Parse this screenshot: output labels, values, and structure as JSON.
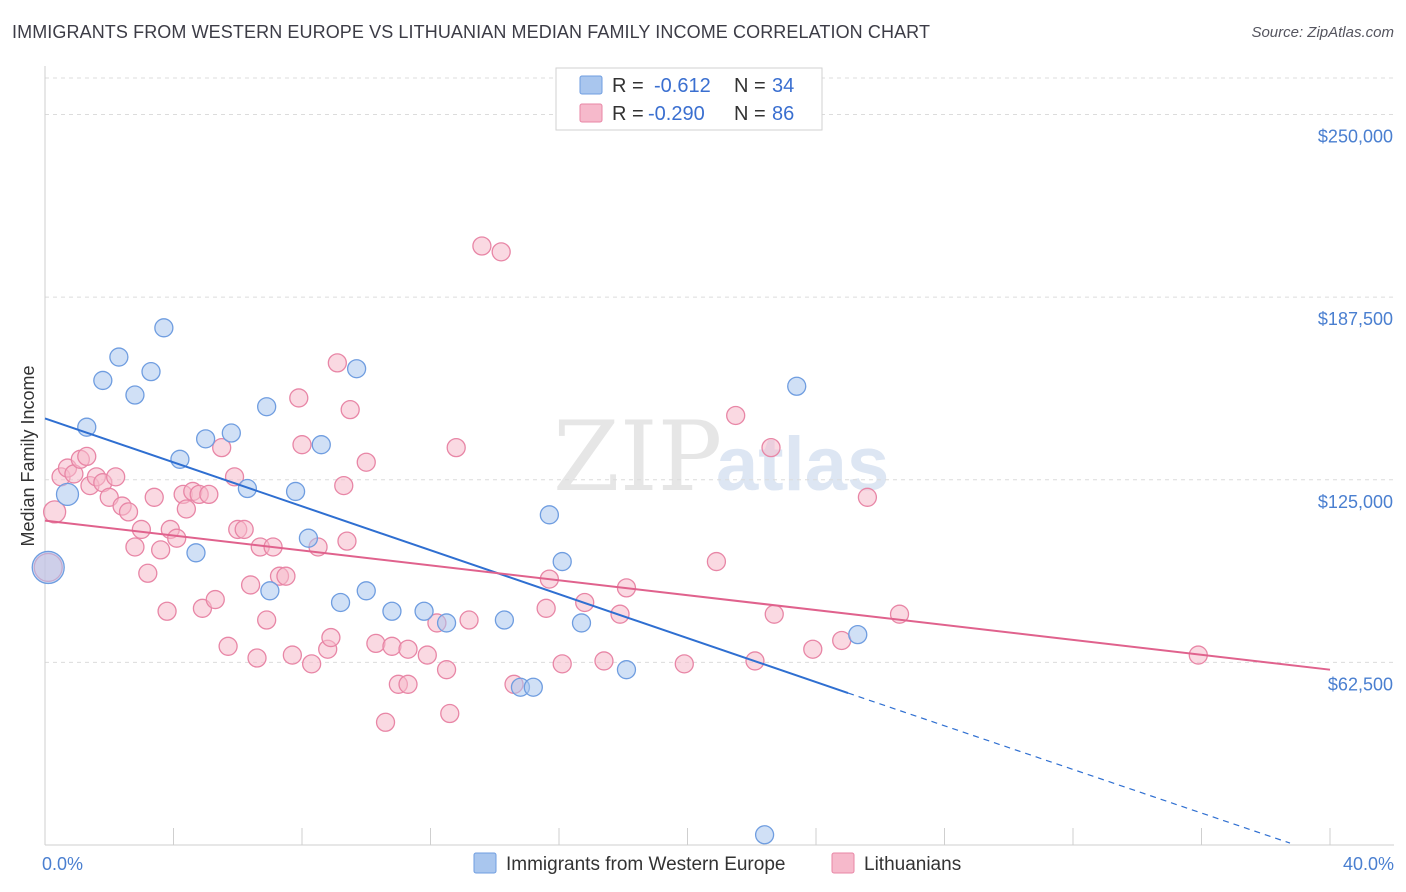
{
  "title": "IMMIGRANTS FROM WESTERN EUROPE VS LITHUANIAN MEDIAN FAMILY INCOME CORRELATION CHART",
  "source": "Source: ZipAtlas.com",
  "watermark": {
    "zip": "ZIP",
    "atlas": "atlas"
  },
  "colors": {
    "blue_fill": "#a9c6ee",
    "blue_stroke": "#6f9de0",
    "blue_line": "#2f6fd1",
    "pink_fill": "#f6b9cb",
    "pink_stroke": "#e886a6",
    "pink_line": "#e0628d",
    "grid": "#dcdcdc",
    "tick_text": "#4a7fd0"
  },
  "legend": {
    "rows": [
      {
        "r_label": "R =",
        "r_value": "-0.612",
        "n_label": "N =",
        "n_value": "34"
      },
      {
        "r_label": "R =",
        "r_value": "-0.290",
        "n_label": "N =",
        "n_value": "86"
      }
    ]
  },
  "bottom_legend": [
    "Immigrants from Western Europe",
    "Lithuanians"
  ],
  "chart_data": {
    "type": "scatter",
    "title": "IMMIGRANTS FROM WESTERN EUROPE VS LITHUANIAN MEDIAN FAMILY INCOME CORRELATION CHART",
    "xlabel": "",
    "ylabel": "Median Family Income",
    "xlim": [
      0,
      40
    ],
    "ylim": [
      0,
      262500
    ],
    "x_tick_labels": [
      "0.0%",
      "40.0%"
    ],
    "y_ticks": [
      62500,
      125000,
      187500,
      250000
    ],
    "y_tick_labels": [
      "$62,500",
      "$125,000",
      "$187,500",
      "$250,000"
    ],
    "grid": true,
    "legend_position": "top-center",
    "series": [
      {
        "name": "Immigrants from Western Europe",
        "r": -0.612,
        "n": 34,
        "trend": {
          "x0": 0,
          "y0": 146000,
          "x1": 25,
          "y1": 52000,
          "dashed_to_x": 40,
          "dashed_to_y": -4000
        },
        "points": [
          [
            0.1,
            95000,
            16
          ],
          [
            0.7,
            120000,
            11
          ],
          [
            1.3,
            143000,
            9
          ],
          [
            1.8,
            159000,
            9
          ],
          [
            2.3,
            167000,
            9
          ],
          [
            2.8,
            154000,
            9
          ],
          [
            3.3,
            162000,
            9
          ],
          [
            3.7,
            177000,
            9
          ],
          [
            4.2,
            132000,
            9
          ],
          [
            4.7,
            100000,
            9
          ],
          [
            5.0,
            139000,
            9
          ],
          [
            5.8,
            141000,
            9
          ],
          [
            6.3,
            122000,
            9
          ],
          [
            6.9,
            150000,
            9
          ],
          [
            7.0,
            87000,
            9
          ],
          [
            7.8,
            121000,
            9
          ],
          [
            8.2,
            105000,
            9
          ],
          [
            8.6,
            137000,
            9
          ],
          [
            9.2,
            83000,
            9
          ],
          [
            9.7,
            163000,
            9
          ],
          [
            10.0,
            87000,
            9
          ],
          [
            10.8,
            80000,
            9
          ],
          [
            11.8,
            80000,
            9
          ],
          [
            12.5,
            76000,
            9
          ],
          [
            14.3,
            77000,
            9
          ],
          [
            14.8,
            54000,
            9
          ],
          [
            15.2,
            54000,
            9
          ],
          [
            15.7,
            113000,
            9
          ],
          [
            16.1,
            97000,
            9
          ],
          [
            16.7,
            76000,
            9
          ],
          [
            18.1,
            60000,
            9
          ],
          [
            22.4,
            3500,
            9
          ],
          [
            23.4,
            157000,
            9
          ],
          [
            25.3,
            72000,
            9
          ]
        ]
      },
      {
        "name": "Lithuanians",
        "r": -0.29,
        "n": 86,
        "trend": {
          "x0": 0,
          "y0": 111000,
          "x1": 40,
          "y1": 60000
        },
        "points": [
          [
            0.1,
            95000,
            14
          ],
          [
            0.3,
            114000,
            11
          ],
          [
            0.5,
            126000,
            9
          ],
          [
            0.7,
            129000,
            9
          ],
          [
            0.9,
            127000,
            9
          ],
          [
            1.1,
            132000,
            9
          ],
          [
            1.3,
            133000,
            9
          ],
          [
            1.4,
            123000,
            9
          ],
          [
            1.6,
            126000,
            9
          ],
          [
            1.8,
            124000,
            9
          ],
          [
            2.0,
            119000,
            9
          ],
          [
            2.2,
            126000,
            9
          ],
          [
            2.4,
            116000,
            9
          ],
          [
            2.6,
            114000,
            9
          ],
          [
            2.8,
            102000,
            9
          ],
          [
            3.0,
            108000,
            9
          ],
          [
            3.2,
            93000,
            9
          ],
          [
            3.4,
            119000,
            9
          ],
          [
            3.6,
            101000,
            9
          ],
          [
            3.8,
            80000,
            9
          ],
          [
            3.9,
            108000,
            9
          ],
          [
            4.1,
            105000,
            9
          ],
          [
            4.3,
            120000,
            9
          ],
          [
            4.4,
            115000,
            9
          ],
          [
            4.6,
            121000,
            9
          ],
          [
            4.8,
            120000,
            9
          ],
          [
            4.9,
            81000,
            9
          ],
          [
            5.1,
            120000,
            9
          ],
          [
            5.3,
            84000,
            9
          ],
          [
            5.5,
            136000,
            9
          ],
          [
            5.7,
            68000,
            9
          ],
          [
            5.9,
            126000,
            9
          ],
          [
            6.0,
            108000,
            9
          ],
          [
            6.2,
            108000,
            9
          ],
          [
            6.4,
            89000,
            9
          ],
          [
            6.6,
            64000,
            9
          ],
          [
            6.7,
            102000,
            9
          ],
          [
            6.9,
            77000,
            9
          ],
          [
            7.1,
            102000,
            9
          ],
          [
            7.3,
            92000,
            9
          ],
          [
            7.5,
            92000,
            9
          ],
          [
            7.7,
            65000,
            9
          ],
          [
            7.9,
            153000,
            9
          ],
          [
            8.0,
            137000,
            9
          ],
          [
            8.3,
            62000,
            9
          ],
          [
            8.5,
            102000,
            9
          ],
          [
            8.8,
            67000,
            9
          ],
          [
            8.9,
            71000,
            9
          ],
          [
            9.1,
            165000,
            9
          ],
          [
            9.3,
            123000,
            9
          ],
          [
            9.4,
            104000,
            9
          ],
          [
            9.5,
            149000,
            9
          ],
          [
            10.0,
            131000,
            9
          ],
          [
            10.3,
            69000,
            9
          ],
          [
            10.6,
            42000,
            9
          ],
          [
            10.8,
            68000,
            9
          ],
          [
            11.0,
            55000,
            9
          ],
          [
            11.3,
            67000,
            9
          ],
          [
            11.3,
            55000,
            9
          ],
          [
            11.9,
            65000,
            9
          ],
          [
            12.2,
            76000,
            9
          ],
          [
            12.5,
            60000,
            9
          ],
          [
            12.6,
            45000,
            9
          ],
          [
            12.8,
            136000,
            9
          ],
          [
            13.2,
            77000,
            9
          ],
          [
            13.6,
            205000,
            9
          ],
          [
            14.2,
            203000,
            9
          ],
          [
            14.6,
            55000,
            9
          ],
          [
            15.6,
            81000,
            9
          ],
          [
            15.7,
            91000,
            9
          ],
          [
            16.1,
            62000,
            9
          ],
          [
            16.8,
            83000,
            9
          ],
          [
            17.4,
            63000,
            9
          ],
          [
            17.9,
            79000,
            9
          ],
          [
            18.1,
            88000,
            9
          ],
          [
            19.9,
            62000,
            9
          ],
          [
            20.9,
            97000,
            9
          ],
          [
            21.5,
            147000,
            9
          ],
          [
            22.1,
            63000,
            9
          ],
          [
            22.6,
            136000,
            9
          ],
          [
            22.7,
            79000,
            9
          ],
          [
            23.9,
            67000,
            9
          ],
          [
            24.8,
            70000,
            9
          ],
          [
            25.6,
            119000,
            9
          ],
          [
            26.6,
            79000,
            9
          ],
          [
            35.9,
            65000,
            9
          ]
        ]
      }
    ]
  }
}
